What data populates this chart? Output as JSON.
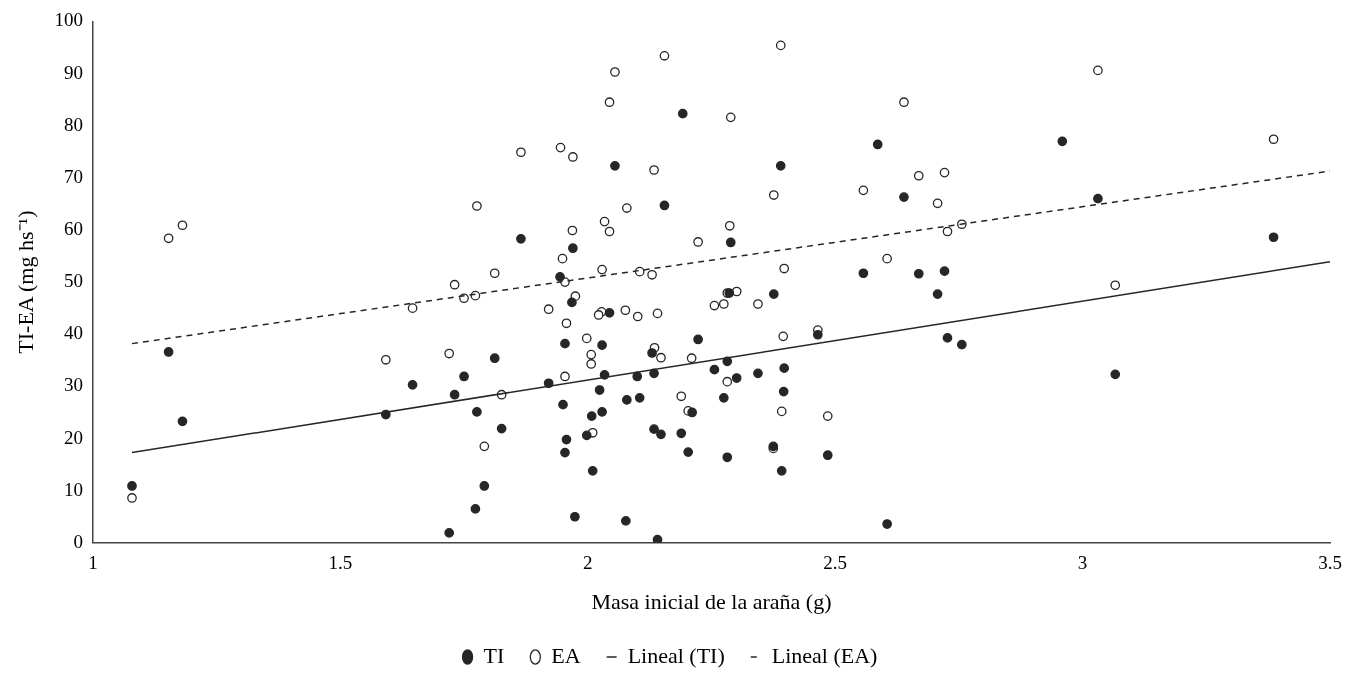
{
  "chart_data": {
    "type": "scatter",
    "xlabel": "Masa inicial de la araña (g)",
    "ylabel": "TI-EA (mg hs⁻¹)",
    "xlim": [
      1,
      3.5
    ],
    "xticks": [
      1,
      1.5,
      2,
      2.5,
      3,
      3.5
    ],
    "ylim": [
      0,
      100
    ],
    "yticks": [
      0,
      10,
      20,
      30,
      40,
      50,
      60,
      70,
      80,
      90,
      100
    ],
    "grid": false,
    "legend": "bottom",
    "marker": "circle",
    "series": [
      {
        "name": "TI",
        "type": "scatter",
        "color": "#262626",
        "x": [
          1.079,
          1.153,
          1.181,
          1.592,
          1.646,
          1.72,
          1.731,
          1.75,
          1.776,
          1.773,
          1.791,
          1.812,
          1.826,
          1.865,
          1.97,
          1.944,
          1.968,
          1.954,
          2.029,
          2.044,
          2.055,
          2.155,
          2.192,
          2.289,
          2.39,
          2.376,
          2.286,
          2.223,
          2.13,
          2.134,
          2.1,
          2.034,
          1.921,
          2.024,
          2.079,
          2.105,
          1.95,
          2.029,
          2.008,
          1.998,
          1.957,
          1.954,
          2.01,
          1.974,
          2.077,
          2.141,
          2.134,
          2.148,
          2.189,
          2.203,
          2.211,
          2.256,
          2.282,
          2.301,
          2.275,
          2.282,
          2.344,
          2.397,
          2.396,
          2.375,
          2.392,
          2.465,
          2.586,
          2.639,
          2.557,
          2.669,
          2.721,
          2.707,
          2.727,
          2.756,
          2.485,
          2.605,
          2.959,
          3.031,
          3.066,
          3.386
        ],
        "values": [
          10.9,
          36.6,
          23.3,
          24.6,
          30.3,
          1.9,
          28.4,
          31.9,
          25.1,
          6.5,
          10.9,
          35.4,
          21.9,
          58.3,
          56.5,
          51,
          46.1,
          38.2,
          37.9,
          44.1,
          72.3,
          64.7,
          82.3,
          57.6,
          72.3,
          47.7,
          47.9,
          39,
          36.4,
          32.5,
          31.9,
          32.2,
          30.6,
          29.3,
          27.4,
          27.8,
          26.5,
          25.1,
          24.3,
          20.6,
          19.8,
          17.3,
          13.8,
          5,
          4.2,
          0.6,
          21.8,
          20.8,
          21,
          17.4,
          25,
          33.2,
          34.8,
          31.6,
          27.8,
          16.4,
          32.5,
          33.5,
          29,
          18.5,
          13.8,
          39.9,
          76.4,
          66.3,
          51.7,
          51.6,
          52.1,
          47.7,
          39.3,
          38,
          16.8,
          3.6,
          77,
          66,
          32.3,
          58.6
        ]
      },
      {
        "name": "EA",
        "type": "scatter",
        "color": "#ffffff",
        "x": [
          1.079,
          1.153,
          1.181,
          1.592,
          1.646,
          1.72,
          1.731,
          1.75,
          1.773,
          1.776,
          1.791,
          1.812,
          1.826,
          1.865,
          1.945,
          1.97,
          2.055,
          2.044,
          2.155,
          2.134,
          2.289,
          2.39,
          2.376,
          2.079,
          2.034,
          2.044,
          1.969,
          1.949,
          2.223,
          2.287,
          2.029,
          2.105,
          2.13,
          2.397,
          1.954,
          1.975,
          1.921,
          2.028,
          2.022,
          2.076,
          2.101,
          2.141,
          1.957,
          1.998,
          2.135,
          2.007,
          2.007,
          2.148,
          2.21,
          1.954,
          2.256,
          2.275,
          2.282,
          2.301,
          2.344,
          2.395,
          2.282,
          2.189,
          2.203,
          2.01,
          2.392,
          2.375,
          2.465,
          2.485,
          2.557,
          2.639,
          2.669,
          2.721,
          2.707,
          2.605,
          2.727,
          2.756,
          3.031,
          3.066,
          3.386
        ],
        "values": [
          8.6,
          58.4,
          60.9,
          35.1,
          45,
          36.3,
          49.5,
          46.9,
          47.4,
          64.6,
          18.5,
          51.7,
          28.4,
          74.9,
          75.8,
          74,
          90.3,
          84.5,
          93.4,
          71.5,
          81.6,
          95.4,
          66.7,
          64.2,
          61.6,
          59.7,
          59.9,
          54.5,
          57.7,
          60.8,
          52.4,
          52,
          51.4,
          52.6,
          50,
          47.3,
          44.8,
          44.3,
          43.7,
          44.6,
          43.4,
          44,
          42.1,
          39.2,
          37.4,
          36.1,
          34.3,
          35.5,
          35.4,
          31.9,
          45.5,
          45.8,
          47.9,
          48.2,
          45.8,
          39.6,
          30.9,
          28.1,
          25.3,
          21.1,
          25.2,
          18.1,
          40.8,
          24.3,
          67.6,
          84.5,
          70.4,
          71,
          65.1,
          54.5,
          59.7,
          61.1,
          90.6,
          49.4,
          77.4
        ]
      },
      {
        "name": "Lineal (TI)",
        "type": "line",
        "color": "#262626",
        "marker": "none",
        "line_style": "solid",
        "x": [
          1.079,
          3.5
        ],
        "values": [
          17.3,
          53.9
        ]
      },
      {
        "name": "Lineal (EA)",
        "type": "line",
        "color": "#262626",
        "marker": "none",
        "line_style": "dashed",
        "x": [
          1.079,
          3.5
        ],
        "values": [
          38.2,
          71.3
        ]
      }
    ]
  }
}
